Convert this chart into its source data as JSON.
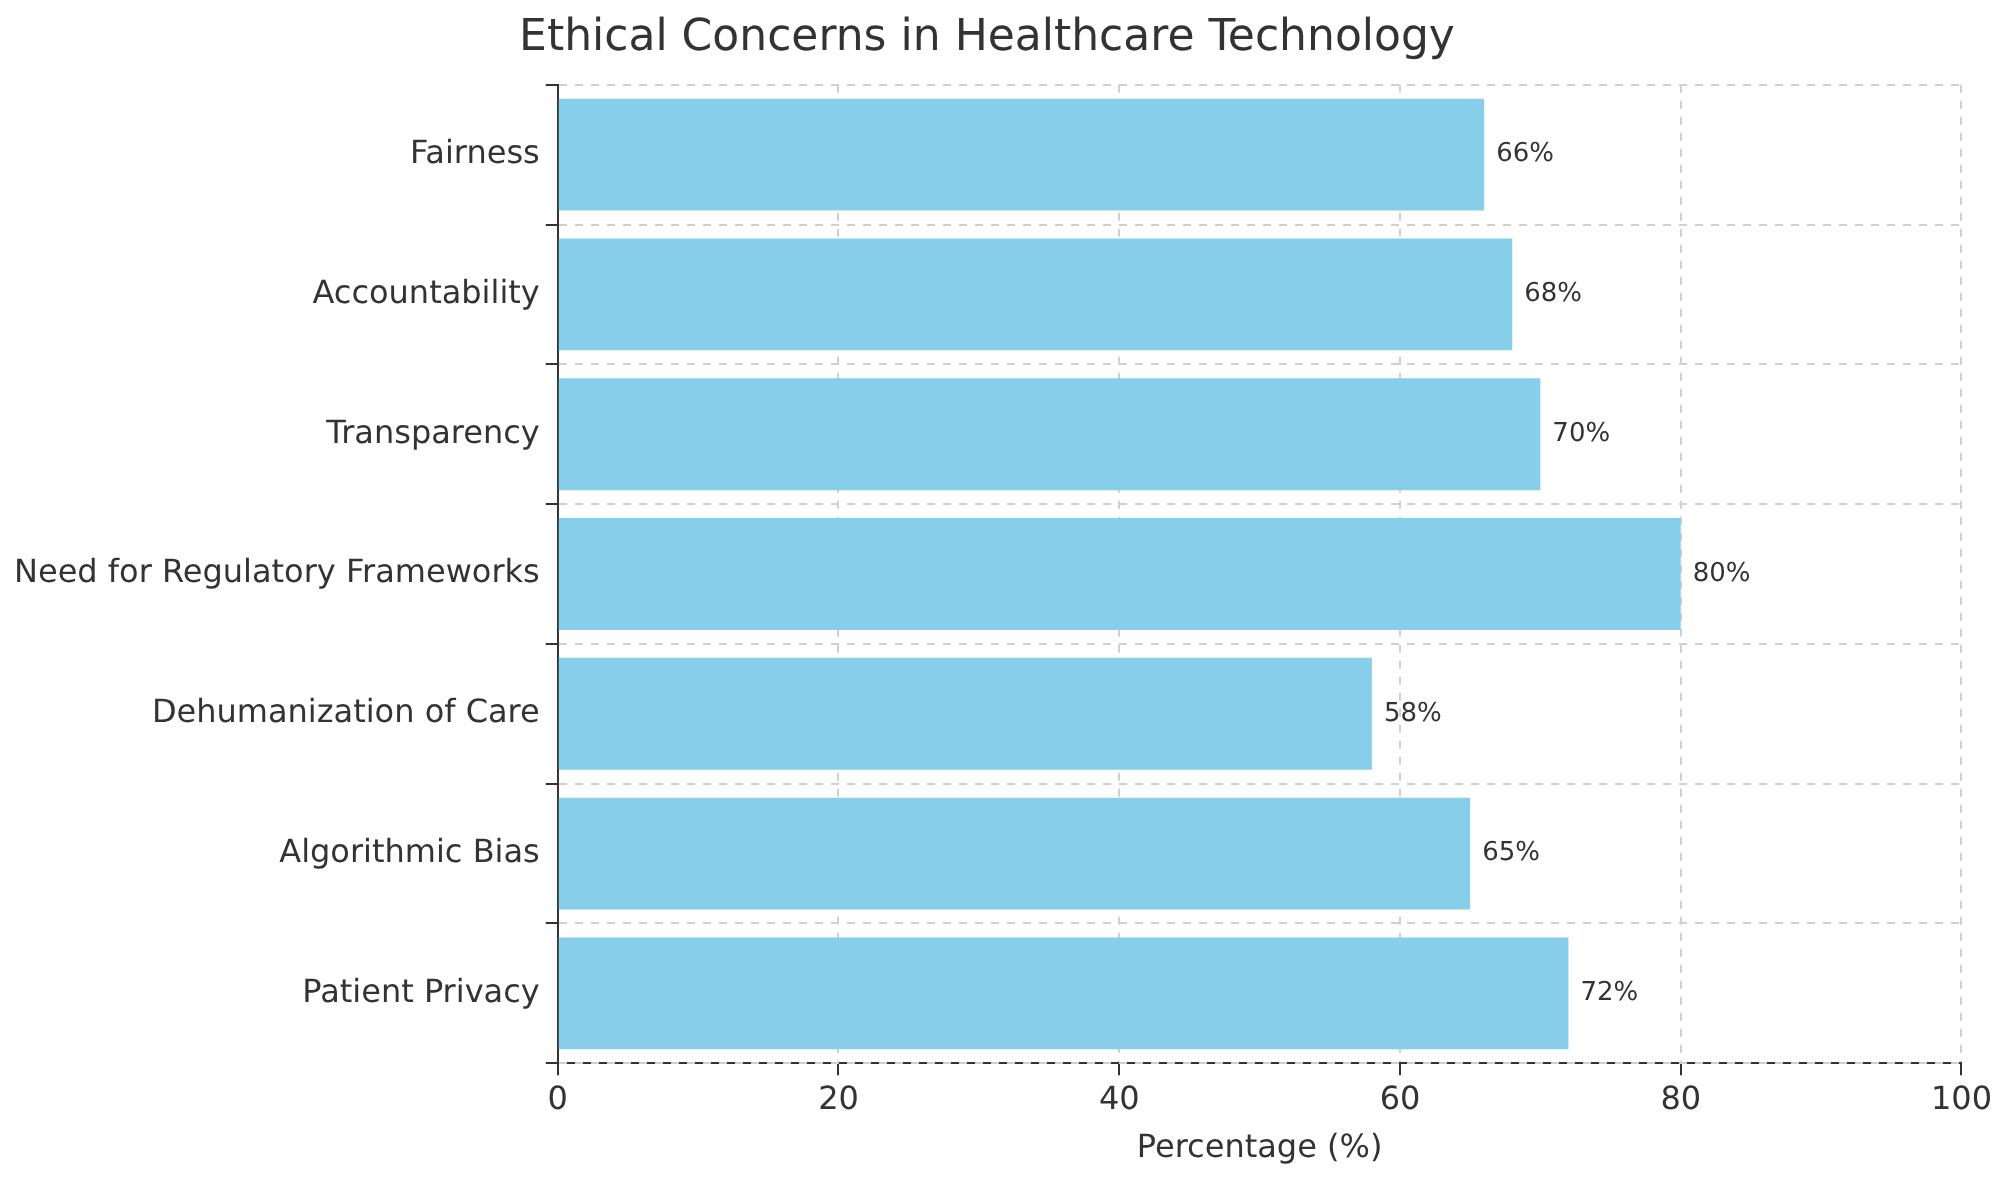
{
  "chart_data": {
    "type": "bar",
    "orientation": "horizontal",
    "title": "Ethical Concerns in Healthcare Technology",
    "xlabel": "Percentage (%)",
    "categories": [
      "Fairness",
      "Accountability",
      "Transparency",
      "Need for Regulatory Frameworks",
      "Dehumanization of Care",
      "Algorithmic Bias",
      "Patient Privacy"
    ],
    "values": [
      66,
      68,
      70,
      80,
      58,
      65,
      72
    ],
    "value_labels": [
      "66%",
      "68%",
      "70%",
      "80%",
      "58%",
      "65%",
      "72%"
    ],
    "color": "#87ceeb",
    "xlim": [
      0,
      100
    ],
    "xticks": [
      0,
      20,
      40,
      60,
      80,
      100
    ],
    "grid": true
  }
}
